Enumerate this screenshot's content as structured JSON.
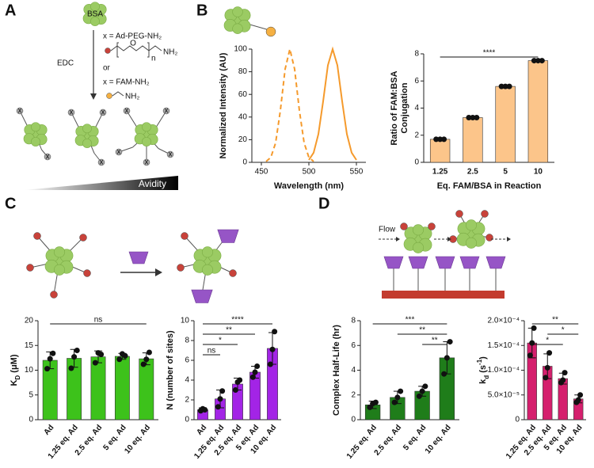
{
  "panel_labels": [
    "A",
    "B",
    "C",
    "D"
  ],
  "diagram_a": {
    "protein": "BSA",
    "linker_1": "x = Ad-PEG-NH₂",
    "reagent": "EDC",
    "or": "or",
    "linker_2": "x = FAM-NH₂",
    "oxygen": "O",
    "repeat": "n",
    "amine": "NH₂",
    "x_label": "x",
    "gradient": "Avidity"
  },
  "diagram_d": {
    "flow": "Flow"
  },
  "chart_data": [
    {
      "type": "line",
      "y_label": "Normalized Intensity (AU)",
      "x_label": "Wavelength (nm)",
      "xlim": [
        440,
        560
      ],
      "xticks": [
        450,
        500,
        550
      ],
      "ylim": [
        0,
        100
      ],
      "yticks": [
        0,
        20,
        40,
        60,
        80,
        100
      ],
      "series": [
        {
          "color": "#f59a2c",
          "dash": true,
          "x": [
            455,
            460,
            465,
            470,
            475,
            480,
            485,
            490,
            495,
            500,
            505
          ],
          "values": [
            0.8,
            4.4,
            17.2,
            45.8,
            82.3,
            100,
            82.3,
            45.8,
            17.2,
            4.4,
            0.8
          ]
        },
        {
          "color": "#f59a2c",
          "dash": false,
          "x": [
            500,
            505,
            510,
            515,
            520,
            525,
            530,
            535,
            540,
            545,
            550
          ],
          "values": [
            2.1,
            8.5,
            24.9,
            53.9,
            85.7,
            100,
            85.7,
            53.9,
            24.9,
            8.5,
            2.1
          ]
        }
      ]
    },
    {
      "type": "bar",
      "y_label": [
        {
          "text": "Ratio of FAM:BSA"
        },
        {
          "text": "Conjugation",
          "line": 2
        }
      ],
      "x_label": "Eq. FAM/BSA in Reaction",
      "categories": [
        "1.25",
        "2.5",
        "5",
        "10"
      ],
      "values": [
        1.7,
        3.3,
        5.6,
        7.5
      ],
      "color": "#fcc58a",
      "points": [
        [
          1.7,
          1.7,
          1.7
        ],
        [
          3.3,
          3.3,
          3.3
        ],
        [
          5.6,
          5.6,
          5.6
        ],
        [
          7.5,
          7.5,
          7.5
        ]
      ],
      "ylim": [
        0,
        8
      ],
      "yticks": [
        0,
        2,
        4,
        6,
        8
      ],
      "rotate_labels": false,
      "significance": [
        {
          "from": "1.25",
          "to": "10",
          "label": "****"
        }
      ]
    },
    {
      "type": "bar",
      "y_label": [
        {
          "text": "K"
        },
        {
          "text": "D",
          "script": "sub"
        },
        {
          "text": " (μM)"
        }
      ],
      "categories": [
        "Ad",
        "1.25 eq. Ad",
        "2.5 eq. Ad",
        "5 eq. Ad",
        "10 eq. Ad"
      ],
      "values": [
        12.0,
        12.4,
        12.7,
        12.8,
        12.3
      ],
      "errors": [
        1.7,
        1.8,
        1.2,
        0.6,
        1.2
      ],
      "color": "#3dc21b",
      "points": [
        [
          10.3,
          12.3,
          13.4
        ],
        [
          10.4,
          12.7,
          14.0
        ],
        [
          11.5,
          13.5,
          13.2
        ],
        [
          12.2,
          13.3,
          12.9
        ],
        [
          11.2,
          12.2,
          13.6
        ]
      ],
      "ylim": [
        0,
        20
      ],
      "yticks": [
        0,
        5,
        10,
        15,
        20
      ],
      "rotate_labels": true,
      "significance": [
        {
          "from": "Ad",
          "to": "10 eq. Ad",
          "label": "ns"
        }
      ]
    },
    {
      "type": "bar",
      "y_label": "N (number of sites)",
      "categories": [
        "Ad",
        "1.25 eq. Ad",
        "2.5 eq. Ad",
        "5 eq. Ad",
        "10 eq. Ad"
      ],
      "values": [
        1.0,
        2.1,
        3.6,
        4.8,
        7.2
      ],
      "errors": [
        0.2,
        0.9,
        0.6,
        0.6,
        1.6
      ],
      "color": "#a324e6",
      "points": [
        [
          0.9,
          1.1,
          1.0
        ],
        [
          1.3,
          2.1,
          2.9
        ],
        [
          3.0,
          3.8,
          4.0
        ],
        [
          4.3,
          4.8,
          5.4
        ],
        [
          5.6,
          7.1,
          8.9
        ]
      ],
      "ylim": [
        0,
        10
      ],
      "yticks": [
        0,
        2,
        4,
        6,
        8,
        10
      ],
      "rotate_labels": true,
      "significance": [
        {
          "from": "Ad",
          "to": "10 eq. Ad",
          "label": "****"
        },
        {
          "from": "Ad",
          "to": "5 eq. Ad",
          "label": "**"
        },
        {
          "from": "Ad",
          "to": "2.5 eq. Ad",
          "label": "*"
        },
        {
          "from": "Ad",
          "to": "1.25 eq. Ad",
          "label": "ns"
        }
      ]
    },
    {
      "type": "bar",
      "y_label": "Complex Half-Life (hr)",
      "categories": [
        "1.25 eq. Ad",
        "2.5 eq. Ad",
        "5 eq. Ad",
        "10 eq. Ad"
      ],
      "values": [
        1.2,
        1.8,
        2.3,
        5.0
      ],
      "errors": [
        0.3,
        0.5,
        0.4,
        1.3
      ],
      "color": "#1f7d1a",
      "points": [
        [
          1.0,
          1.3,
          1.4
        ],
        [
          1.4,
          1.8,
          2.3
        ],
        [
          1.9,
          2.3,
          2.7
        ],
        [
          3.7,
          5.0,
          6.3
        ]
      ],
      "ylim": [
        0,
        8
      ],
      "yticks": [
        0,
        2,
        4,
        6,
        8
      ],
      "rotate_labels": true,
      "significance": [
        {
          "from": "1.25 eq. Ad",
          "to": "10 eq. Ad",
          "label": "***"
        },
        {
          "from": "2.5 eq. Ad",
          "to": "10 eq. Ad",
          "label": "**"
        },
        {
          "from": "5 eq. Ad",
          "to": "10 eq. Ad",
          "label": "**"
        }
      ]
    },
    {
      "type": "bar",
      "y_label": [
        {
          "text": "k"
        },
        {
          "text": "d",
          "script": "sub"
        },
        {
          "text": " (s"
        },
        {
          "text": "-1",
          "script": "sup"
        },
        {
          "text": ")"
        }
      ],
      "categories": [
        "1.25 eq. Ad",
        "2.5 eq. Ad",
        "5 eq. Ad",
        "10 eq. Ad"
      ],
      "values": [
        0.000155,
        0.000108,
        8.3e-05,
        4.2e-05
      ],
      "errors": [
        3e-05,
        2.5e-05,
        1.1e-05,
        8e-06
      ],
      "color": "#d51f6d",
      "points": [
        [
          0.00013,
          0.000155,
          0.000185
        ],
        [
          8.5e-05,
          0.000105,
          0.000135
        ],
        [
          7.5e-05,
          8e-05,
          9.5e-05
        ],
        [
          3.5e-05,
          4e-05,
          5e-05
        ]
      ],
      "ylim": [
        0,
        0.0002
      ],
      "yticks": [
        0,
        {
          "value": 5e-05,
          "label": "5.0×10⁻⁵"
        },
        {
          "value": 0.0001,
          "label": "1.0×10⁻⁴"
        },
        {
          "value": 0.00015,
          "label": "1.5×10⁻⁴"
        },
        {
          "value": 0.0002,
          "label": "2.0×10⁻⁴"
        }
      ],
      "rotate_labels": true,
      "significance": [
        {
          "from": "1.25 eq. Ad",
          "to": "10 eq. Ad",
          "label": "**"
        },
        {
          "from": "2.5 eq. Ad",
          "to": "10 eq. Ad",
          "label": "*"
        },
        {
          "from": "1.25 eq. Ad",
          "to": "5 eq. Ad",
          "label": "*"
        }
      ]
    }
  ]
}
